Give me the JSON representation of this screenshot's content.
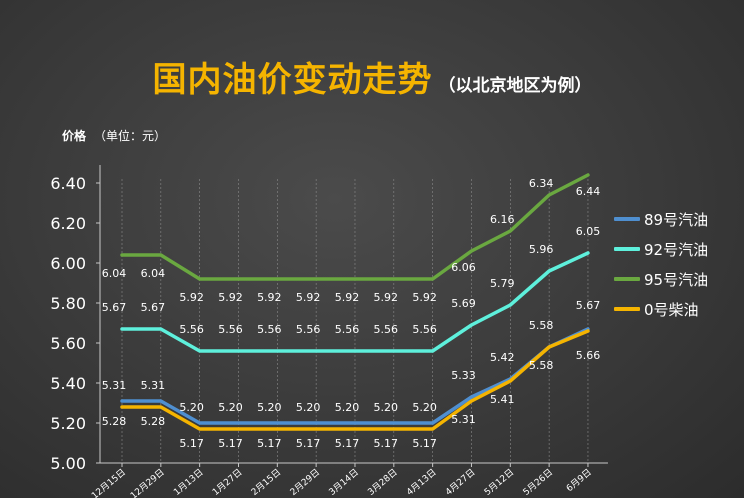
{
  "title": "国内油价变动走势",
  "subtitle": "（以北京地区为例）",
  "ylabel_main": "价格",
  "ylabel_unit": "（单位：元）",
  "colors": {
    "89号汽油": "#4f8fd0",
    "92号汽油": "#5ef0dc",
    "95号汽油": "#6aa840",
    "0号柴油": "#f5b400",
    "axis": "#c8c8c8",
    "text": "#ffffff"
  },
  "chart_data": {
    "type": "line",
    "categories": [
      "12月15日",
      "12月29日",
      "1月13日",
      "1月27日",
      "2月15日",
      "2月29日",
      "3月14日",
      "3月28日",
      "4月13日",
      "4月27日",
      "5月12日",
      "5月26日",
      "6月9日"
    ],
    "series": [
      {
        "name": "89号汽油",
        "values": [
          5.31,
          5.31,
          5.2,
          5.2,
          5.2,
          5.2,
          5.2,
          5.2,
          5.2,
          5.33,
          5.42,
          5.58,
          5.67
        ]
      },
      {
        "name": "92号汽油",
        "values": [
          5.67,
          5.67,
          5.56,
          5.56,
          5.56,
          5.56,
          5.56,
          5.56,
          5.56,
          5.69,
          5.79,
          5.96,
          6.05
        ]
      },
      {
        "name": "95号汽油",
        "values": [
          6.04,
          6.04,
          5.92,
          5.92,
          5.92,
          5.92,
          5.92,
          5.92,
          5.92,
          6.06,
          6.16,
          6.34,
          6.44
        ]
      },
      {
        "name": "0号柴油",
        "values": [
          5.28,
          5.28,
          5.17,
          5.17,
          5.17,
          5.17,
          5.17,
          5.17,
          5.17,
          5.31,
          5.41,
          5.58,
          5.66
        ]
      }
    ],
    "ylim": [
      5.0,
      6.4
    ],
    "yticks": [
      "5.00",
      "5.20",
      "5.40",
      "5.60",
      "5.80",
      "6.00",
      "6.20",
      "6.40"
    ],
    "data_labels": {
      "89号汽油": [
        "5.31",
        "5.31",
        "5.20",
        "5.20",
        "5.20",
        "5.20",
        "5.20",
        "5.20",
        "5.20",
        "5.33",
        "5.42",
        "5.58",
        "5.67"
      ],
      "92号汽油": [
        "5.67",
        "5.67",
        "5.56",
        "5.56",
        "5.56",
        "5.56",
        "5.56",
        "5.56",
        "5.56",
        "5.69",
        "5.79",
        "5.96",
        "6.05"
      ],
      "95号汽油": [
        "6.04",
        "6.04",
        "5.92",
        "5.92",
        "5.92",
        "5.92",
        "5.92",
        "5.92",
        "5.92",
        "6.06",
        "6.16",
        "6.34",
        "6.44"
      ],
      "0号柴油": [
        "5.28",
        "5.28",
        "5.17",
        "5.17",
        "5.17",
        "5.17",
        "5.17",
        "5.17",
        "5.17",
        "5.31",
        "5.41",
        "5.58",
        "5.66"
      ]
    },
    "grid": "vertical",
    "legend_position": "right"
  }
}
